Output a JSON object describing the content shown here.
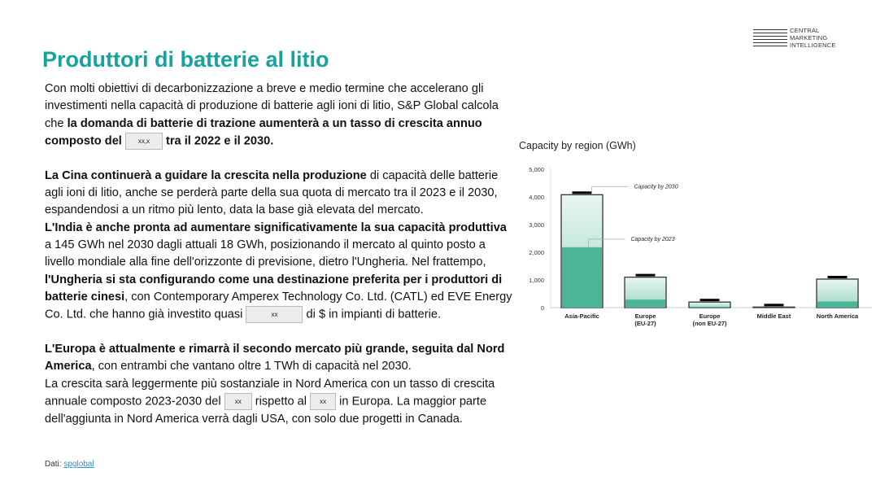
{
  "title": "Produttori di batterie al litio",
  "logo": {
    "lines": [
      "CENTRAL",
      "MARKETING",
      "INTELLIGENCE"
    ]
  },
  "paragraphs": {
    "p1": {
      "a": "Con molti obiettivi di decarbonizzazione a breve e medio termine che accelerano gli investimenti nella capacità di produzione di batterie agli ioni di litio, S&P Global calcola che ",
      "b": "la domanda di batterie di trazione aumenterà a un tasso di crescita annuo composto del",
      "ph": "xx,x",
      "c": "tra il 2022 e il 2030."
    },
    "p2": {
      "a": "La Cina continuerà a guidare la crescita nella produzione",
      "b": " di capacità delle batterie agli ioni di litio, anche se perderà parte della sua quota di mercato tra il 2023 e il 2030, espandendosi a un ritmo più lento, data la base già elevata del mercato.",
      "c": "L'India è anche pronta ad aumentare significativamente la sua capacità produttiva",
      "d": " a 145 GWh nel 2030 dagli attuali 18 GWh, posizionando il mercato al quinto posto a livello mondiale alla fine dell'orizzonte di previsione, dietro l'Ungheria.",
      "e": "Nel frattempo, ",
      "f": "l'Ungheria si sta configurando come una destinazione preferita per i produttori di batterie cinesi",
      "g": ", con Contemporary Amperex Technology Co. Ltd. (CATL) ed EVE Energy Co. Ltd. che hanno già investito quasi",
      "ph": "xx",
      "h": "di $ in impianti di batterie."
    },
    "p3": {
      "a": "L'Europa è attualmente e rimarrà il secondo mercato più grande, seguita dal Nord America",
      "b": ", con entrambi che vantano oltre 1 TWh di capacità nel 2030.",
      "c": "La crescita sarà leggermente più sostanziale in Nord America con un tasso di crescita annuale composto 2023-2030 del",
      "ph1": "xx",
      "d": "rispetto al",
      "ph2": "xx",
      "e": "in Europa. La maggior parte dell'aggiunta in Nord America verrà dagli USA, con solo due progetti in Canada."
    }
  },
  "source": {
    "label": "Dati:",
    "link": "spglobal"
  },
  "chart_data": {
    "type": "bar",
    "title": "Capacity by region (GWh)",
    "categories": [
      "Asia-Pacific",
      "Europe\n(EU-27)",
      "Europe\n(non EU-27)",
      "Middle East",
      "North America"
    ],
    "series": [
      {
        "name": "Capacity by 2023",
        "values": [
          2180,
          290,
          30,
          5,
          220
        ],
        "color": "#4db597"
      },
      {
        "name": "Capacity by 2030",
        "values": [
          4080,
          1100,
          200,
          20,
          1030
        ],
        "color": "#c9ebe0"
      }
    ],
    "yticks": [
      0,
      1000,
      2000,
      3000,
      4000,
      5000
    ],
    "ytick_labels": [
      "0",
      "1,000",
      "2,000",
      "3,000",
      "4,000",
      "5,000"
    ],
    "ylim": [
      0,
      5000
    ],
    "grid": false,
    "annotations": [
      "Capacity by 2030",
      "Capacity by 2023"
    ]
  }
}
